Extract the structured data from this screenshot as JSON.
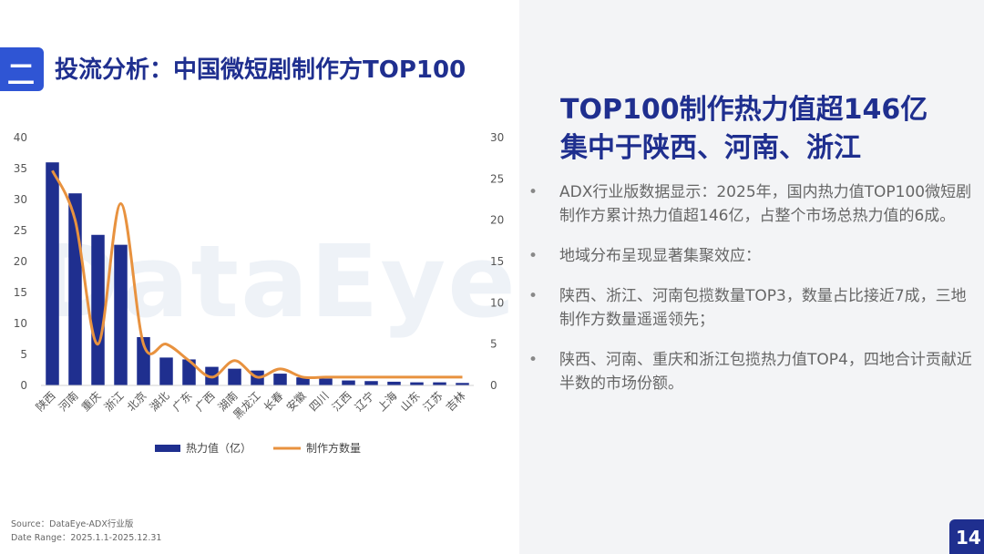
{
  "header": {
    "section_number": "二",
    "title": "投流分析：中国微短剧制作方TOP100"
  },
  "colors": {
    "bar": "#1f2f8f",
    "line": "#e8923f",
    "title": "#1f2f8f",
    "badge": "#2f55d4"
  },
  "watermark": "DataEye",
  "chart_data": {
    "type": "bar",
    "categories": [
      "陕西",
      "河南",
      "重庆",
      "浙江",
      "北京",
      "湖北",
      "广东",
      "广西",
      "湖南",
      "黑龙江",
      "长春",
      "安徽",
      "四川",
      "江西",
      "辽宁",
      "上海",
      "山东",
      "江苏",
      "吉林"
    ],
    "series": [
      {
        "name": "热力值（亿）",
        "type": "bar",
        "axis": "left",
        "values": [
          36,
          31,
          24.3,
          22.7,
          7.8,
          4.5,
          4.2,
          3,
          2.7,
          2.4,
          1.9,
          1.3,
          1.1,
          0.8,
          0.7,
          0.6,
          0.5,
          0.5,
          0.4
        ]
      },
      {
        "name": "制作方数量",
        "type": "line",
        "axis": "right",
        "values": [
          26,
          20,
          5,
          22,
          5,
          5,
          3,
          1,
          3,
          1,
          2,
          1,
          1,
          1,
          1,
          1,
          1,
          1,
          1
        ]
      }
    ],
    "y_left": {
      "min": 0,
      "max": 40,
      "ticks": [
        "0",
        "5",
        "10",
        "15",
        "20",
        "25",
        "30",
        "35",
        "40"
      ]
    },
    "y_right": {
      "min": 0,
      "max": 30,
      "ticks": [
        "0",
        "5",
        "10",
        "15",
        "20",
        "25",
        "30"
      ]
    },
    "grid": false,
    "legend_position": "bottom"
  },
  "source": {
    "line1": "Source：DataEye-ADX行业版",
    "line2": "Date Range：2025.1.1-2025.12.31"
  },
  "headline": {
    "line1": "TOP100制作热力值超146亿",
    "line2": "集中于陕西、河南、浙江"
  },
  "bullets": [
    {
      "marker": "•",
      "text": "ADX行业版数据显示：2025年，国内热力值TOP100微短剧制作方累计热力值超146亿，占整个市场总热力值的6成。"
    },
    {
      "marker": "•",
      "text": "地域分布呈现显著集聚效应："
    },
    {
      "marker": "•",
      "text": "陕西、浙江、河南包揽数量TOP3，数量占比接近7成，三地制作方数量遥遥领先；"
    },
    {
      "marker": "•",
      "text": "陕西、河南、重庆和浙江包揽热力值TOP4，四地合计贡献近半数的市场份额。"
    }
  ],
  "page_number": "14"
}
